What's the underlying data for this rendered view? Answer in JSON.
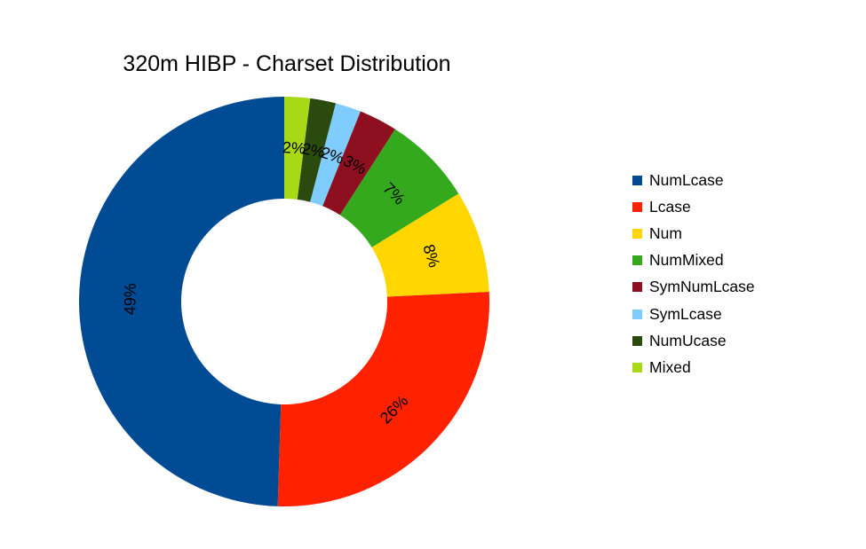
{
  "chart_data": {
    "type": "pie",
    "title": "320m HIBP - Charset Distribution",
    "donut": true,
    "legend_position": "right",
    "series": [
      {
        "name": "NumLcase",
        "value": 49,
        "label": "49%",
        "color": "#004b93"
      },
      {
        "name": "Lcase",
        "value": 26,
        "label": "26%",
        "color": "#ff2200"
      },
      {
        "name": "Num",
        "value": 8,
        "label": "8%",
        "color": "#ffd600"
      },
      {
        "name": "NumMixed",
        "value": 7,
        "label": "7%",
        "color": "#34a91e"
      },
      {
        "name": "SymNumLcase",
        "value": 3,
        "label": "3%",
        "color": "#8e1020"
      },
      {
        "name": "SymLcase",
        "value": 2,
        "label": "2%",
        "color": "#7fccff"
      },
      {
        "name": "NumUcase",
        "value": 2,
        "label": "2%",
        "color": "#2b4a0e"
      },
      {
        "name": "Mixed",
        "value": 2,
        "label": "2%",
        "color": "#a9d816"
      }
    ]
  }
}
